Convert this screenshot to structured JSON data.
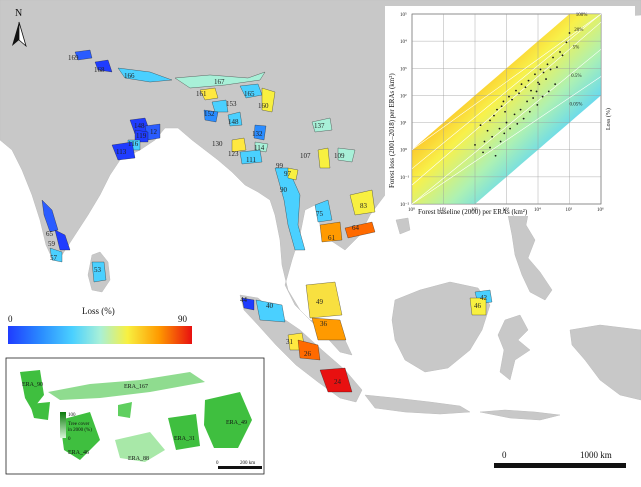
{
  "north_arrow_label": "N",
  "legend": {
    "title": "Loss (%)",
    "min_label": "0",
    "max_label": "90",
    "gradient_colors": [
      "#1f3cff",
      "#2a8cff",
      "#4ad0ff",
      "#a8f0d8",
      "#f8f040",
      "#ff9a00",
      "#e81010"
    ]
  },
  "scalebar": {
    "start": "0",
    "end": "1000 km"
  },
  "era_labels": [
    {
      "id": "169",
      "text": "169"
    },
    {
      "id": "168",
      "text": "168"
    },
    {
      "id": "166",
      "text": "166"
    },
    {
      "id": "167",
      "text": "167"
    },
    {
      "id": "165",
      "text": "165"
    },
    {
      "id": "161",
      "text": "161"
    },
    {
      "id": "153",
      "text": "153"
    },
    {
      "id": "160",
      "text": "160"
    },
    {
      "id": "152",
      "text": "152"
    },
    {
      "id": "148a",
      "text": "148"
    },
    {
      "id": "148b",
      "text": "148"
    },
    {
      "id": "132",
      "text": "132"
    },
    {
      "id": "130",
      "text": "130"
    },
    {
      "id": "114",
      "text": "114"
    },
    {
      "id": "123",
      "text": "123"
    },
    {
      "id": "111",
      "text": "111"
    },
    {
      "id": "137",
      "text": "137"
    },
    {
      "id": "107",
      "text": "107"
    },
    {
      "id": "109",
      "text": "109"
    },
    {
      "id": "97",
      "text": "97"
    },
    {
      "id": "99",
      "text": "99"
    },
    {
      "id": "90",
      "text": "90"
    },
    {
      "id": "119",
      "text": "119"
    },
    {
      "id": "116",
      "text": "116"
    },
    {
      "id": "113",
      "text": "113"
    },
    {
      "id": "12",
      "text": "12"
    },
    {
      "id": "75",
      "text": "75"
    },
    {
      "id": "83",
      "text": "83"
    },
    {
      "id": "61",
      "text": "61"
    },
    {
      "id": "64",
      "text": "64"
    },
    {
      "id": "65",
      "text": "65"
    },
    {
      "id": "59",
      "text": "59"
    },
    {
      "id": "57",
      "text": "57"
    },
    {
      "id": "53",
      "text": "53"
    },
    {
      "id": "44",
      "text": "44"
    },
    {
      "id": "40",
      "text": "40"
    },
    {
      "id": "49",
      "text": "49"
    },
    {
      "id": "36",
      "text": "36"
    },
    {
      "id": "31",
      "text": "31"
    },
    {
      "id": "26",
      "text": "26"
    },
    {
      "id": "24",
      "text": "24"
    },
    {
      "id": "42",
      "text": "42"
    },
    {
      "id": "46",
      "text": "46"
    }
  ],
  "inset_map": {
    "tree_cover_max": "100",
    "tree_cover_min": "0",
    "tree_cover_label_1": "Tree cover",
    "tree_cover_label_2": "in 2000 (%)",
    "scalebar_start": "0",
    "scalebar_end": "200 km",
    "labels": [
      "ERA_90",
      "ERA_167",
      "ERA_49",
      "ERA_46",
      "ERA_88",
      "ERA_31"
    ]
  },
  "inset_chart": {
    "xlabel": "Forest baseline (2000) per ERAs (km²)",
    "ylabel": "Forest loss (2001–2018) per ERAs (km²)",
    "x_ticks": [
      "10⁰",
      "10¹",
      "10²",
      "10³",
      "10⁴",
      "10⁵",
      "10⁶"
    ],
    "y_ticks": [
      "10⁵",
      "10⁴",
      "10³",
      "10²",
      "10¹",
      "10⁰",
      "10⁻¹",
      "10⁻²"
    ],
    "loss_lines": [
      "100%",
      "20%",
      "5%",
      "0.5%",
      "0.05%"
    ],
    "loss_axis_label": "Loss (%)"
  },
  "chart_data": {
    "type": "scatter",
    "xlabel": "Forest baseline (2000) per ERAs (km²)",
    "ylabel": "Forest loss (2001–2018) per ERAs (km²)",
    "xlim": [
      1,
      1000000
    ],
    "ylim": [
      0.01,
      100000
    ],
    "x_scale": "log",
    "y_scale": "log",
    "series": [
      {
        "points": [
          [
            300,
            12
          ],
          [
            500,
            30
          ],
          [
            800,
            60
          ],
          [
            1200,
            90
          ],
          [
            2000,
            150
          ],
          [
            3000,
            260
          ],
          [
            5000,
            350
          ],
          [
            8000,
            600
          ],
          [
            12000,
            900
          ],
          [
            20000,
            1400
          ],
          [
            150,
            8
          ],
          [
            250,
            5
          ],
          [
            400,
            18
          ],
          [
            700,
            40
          ],
          [
            900,
            25
          ],
          [
            1500,
            70
          ],
          [
            2500,
            120
          ],
          [
            4000,
            200
          ],
          [
            6000,
            150
          ],
          [
            10000,
            300
          ],
          [
            15000,
            700
          ],
          [
            30000,
            2500
          ],
          [
            50000,
            4000
          ],
          [
            80000,
            9000
          ],
          [
            100000,
            20000
          ],
          [
            200,
            2
          ],
          [
            350,
            3
          ],
          [
            600,
            6
          ],
          [
            1000,
            10
          ],
          [
            1800,
            20
          ],
          [
            2800,
            30
          ],
          [
            4500,
            60
          ],
          [
            7000,
            80
          ],
          [
            9000,
            140
          ],
          [
            11000,
            260
          ],
          [
            18000,
            400
          ],
          [
            25000,
            900
          ],
          [
            40000,
            1100
          ],
          [
            60000,
            3000
          ],
          [
            100,
            1.5
          ],
          [
            180,
            0.8
          ],
          [
            300,
            1.2
          ],
          [
            450,
            0.6
          ],
          [
            650,
            2
          ],
          [
            850,
            4
          ],
          [
            1300,
            6
          ],
          [
            2200,
            9
          ],
          [
            3500,
            14
          ],
          [
            5500,
            25
          ],
          [
            9500,
            45
          ],
          [
            14000,
            90
          ],
          [
            22000,
            140
          ],
          [
            35000,
            260
          ]
        ]
      }
    ]
  }
}
